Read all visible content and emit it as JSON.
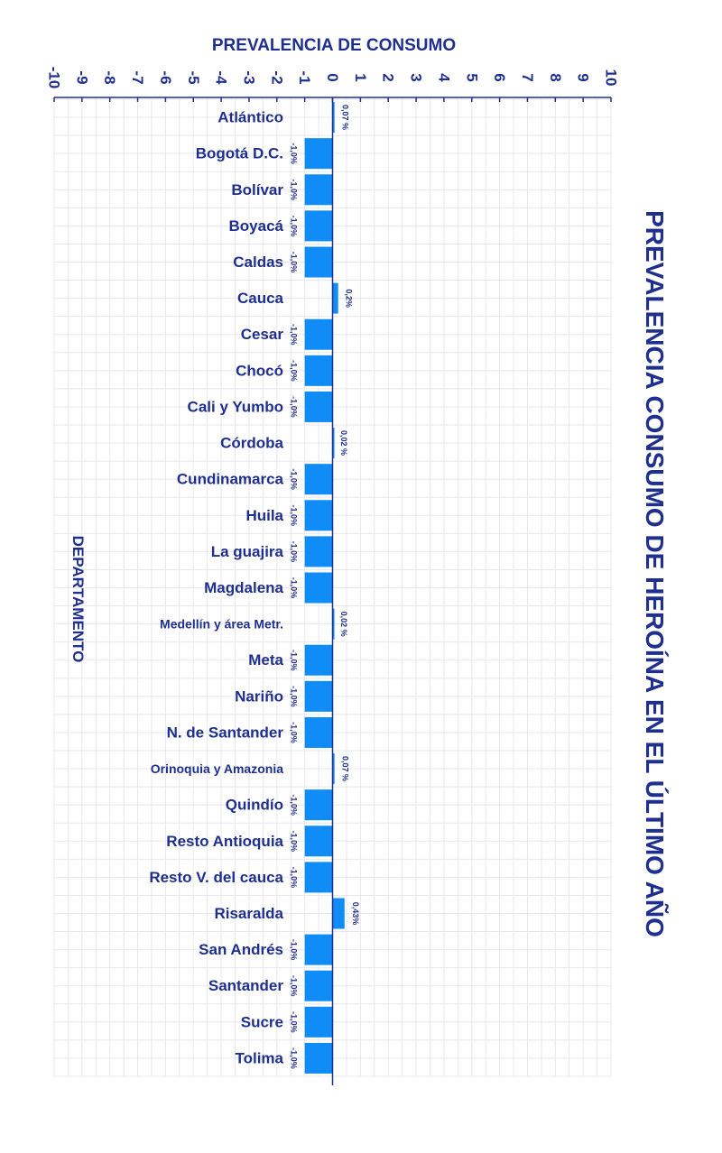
{
  "chart_data": {
    "type": "bar",
    "orientation": "horizontal",
    "title": "PREVALENCIA CONSUMO DE HEROÍNA EN EL ÚLTIMO AÑO",
    "xlabel": "PREVALENCIA DE CONSUMO",
    "ylabel": "DEPARTAMENTO",
    "xlim": [
      -10,
      10
    ],
    "xticks": [
      "-10",
      "-9",
      "-8",
      "-7",
      "-6",
      "-5",
      "-4",
      "-3",
      "-2",
      "-1",
      "0",
      "1",
      "2",
      "3",
      "4",
      "5",
      "6",
      "7",
      "8",
      "9",
      "10"
    ],
    "grid": true,
    "bar_color": "#0f8cf5",
    "text_color": "#1f2f8f",
    "categories": [
      "Atlántico",
      "Bogotá D.C.",
      "Bolívar",
      "Boyacá",
      "Caldas",
      "Cauca",
      "Cesar",
      "Chocó",
      "Cali y Yumbo",
      "Córdoba",
      "Cundinamarca",
      "Huila",
      "La guajira",
      "Magdalena",
      "Medellín y área Metr.",
      "Meta",
      "Nariño",
      "N. de Santander",
      "Orinoquia y Amazonia",
      "Quindío",
      "Resto Antioquia",
      "Resto V. del cauca",
      "Risaralda",
      "San Andrés",
      "Santander",
      "Sucre",
      "Tolima"
    ],
    "values": [
      0.07,
      -1.0,
      -1.0,
      -1.0,
      -1.0,
      0.2,
      -1.0,
      -1.0,
      -1.0,
      0.02,
      -1.0,
      -1.0,
      -1.0,
      -1.0,
      0.02,
      -1.0,
      -1.0,
      -1.0,
      0.07,
      -1.0,
      -1.0,
      -1.0,
      0.43,
      -1.0,
      -1.0,
      -1.0,
      -1.0
    ],
    "data_labels": [
      "0,07 %",
      "-1,0%",
      "-1,0%",
      "-1,0%",
      "-1,0%",
      "0,2%",
      "-1,0%",
      "-1,0%",
      "-1,0%",
      "0,02 %",
      "-1,0%",
      "-1,0%",
      "-1,0%",
      "-1,0%",
      "0,02 %",
      "-1,0%",
      "-1,0%",
      "-1,0%",
      "0,07 %",
      "-1,0%",
      "-1,0%",
      "-1,0%",
      "0,43%",
      "-1,0%",
      "-1,0%",
      "-1,0%",
      "-1,0%"
    ]
  }
}
